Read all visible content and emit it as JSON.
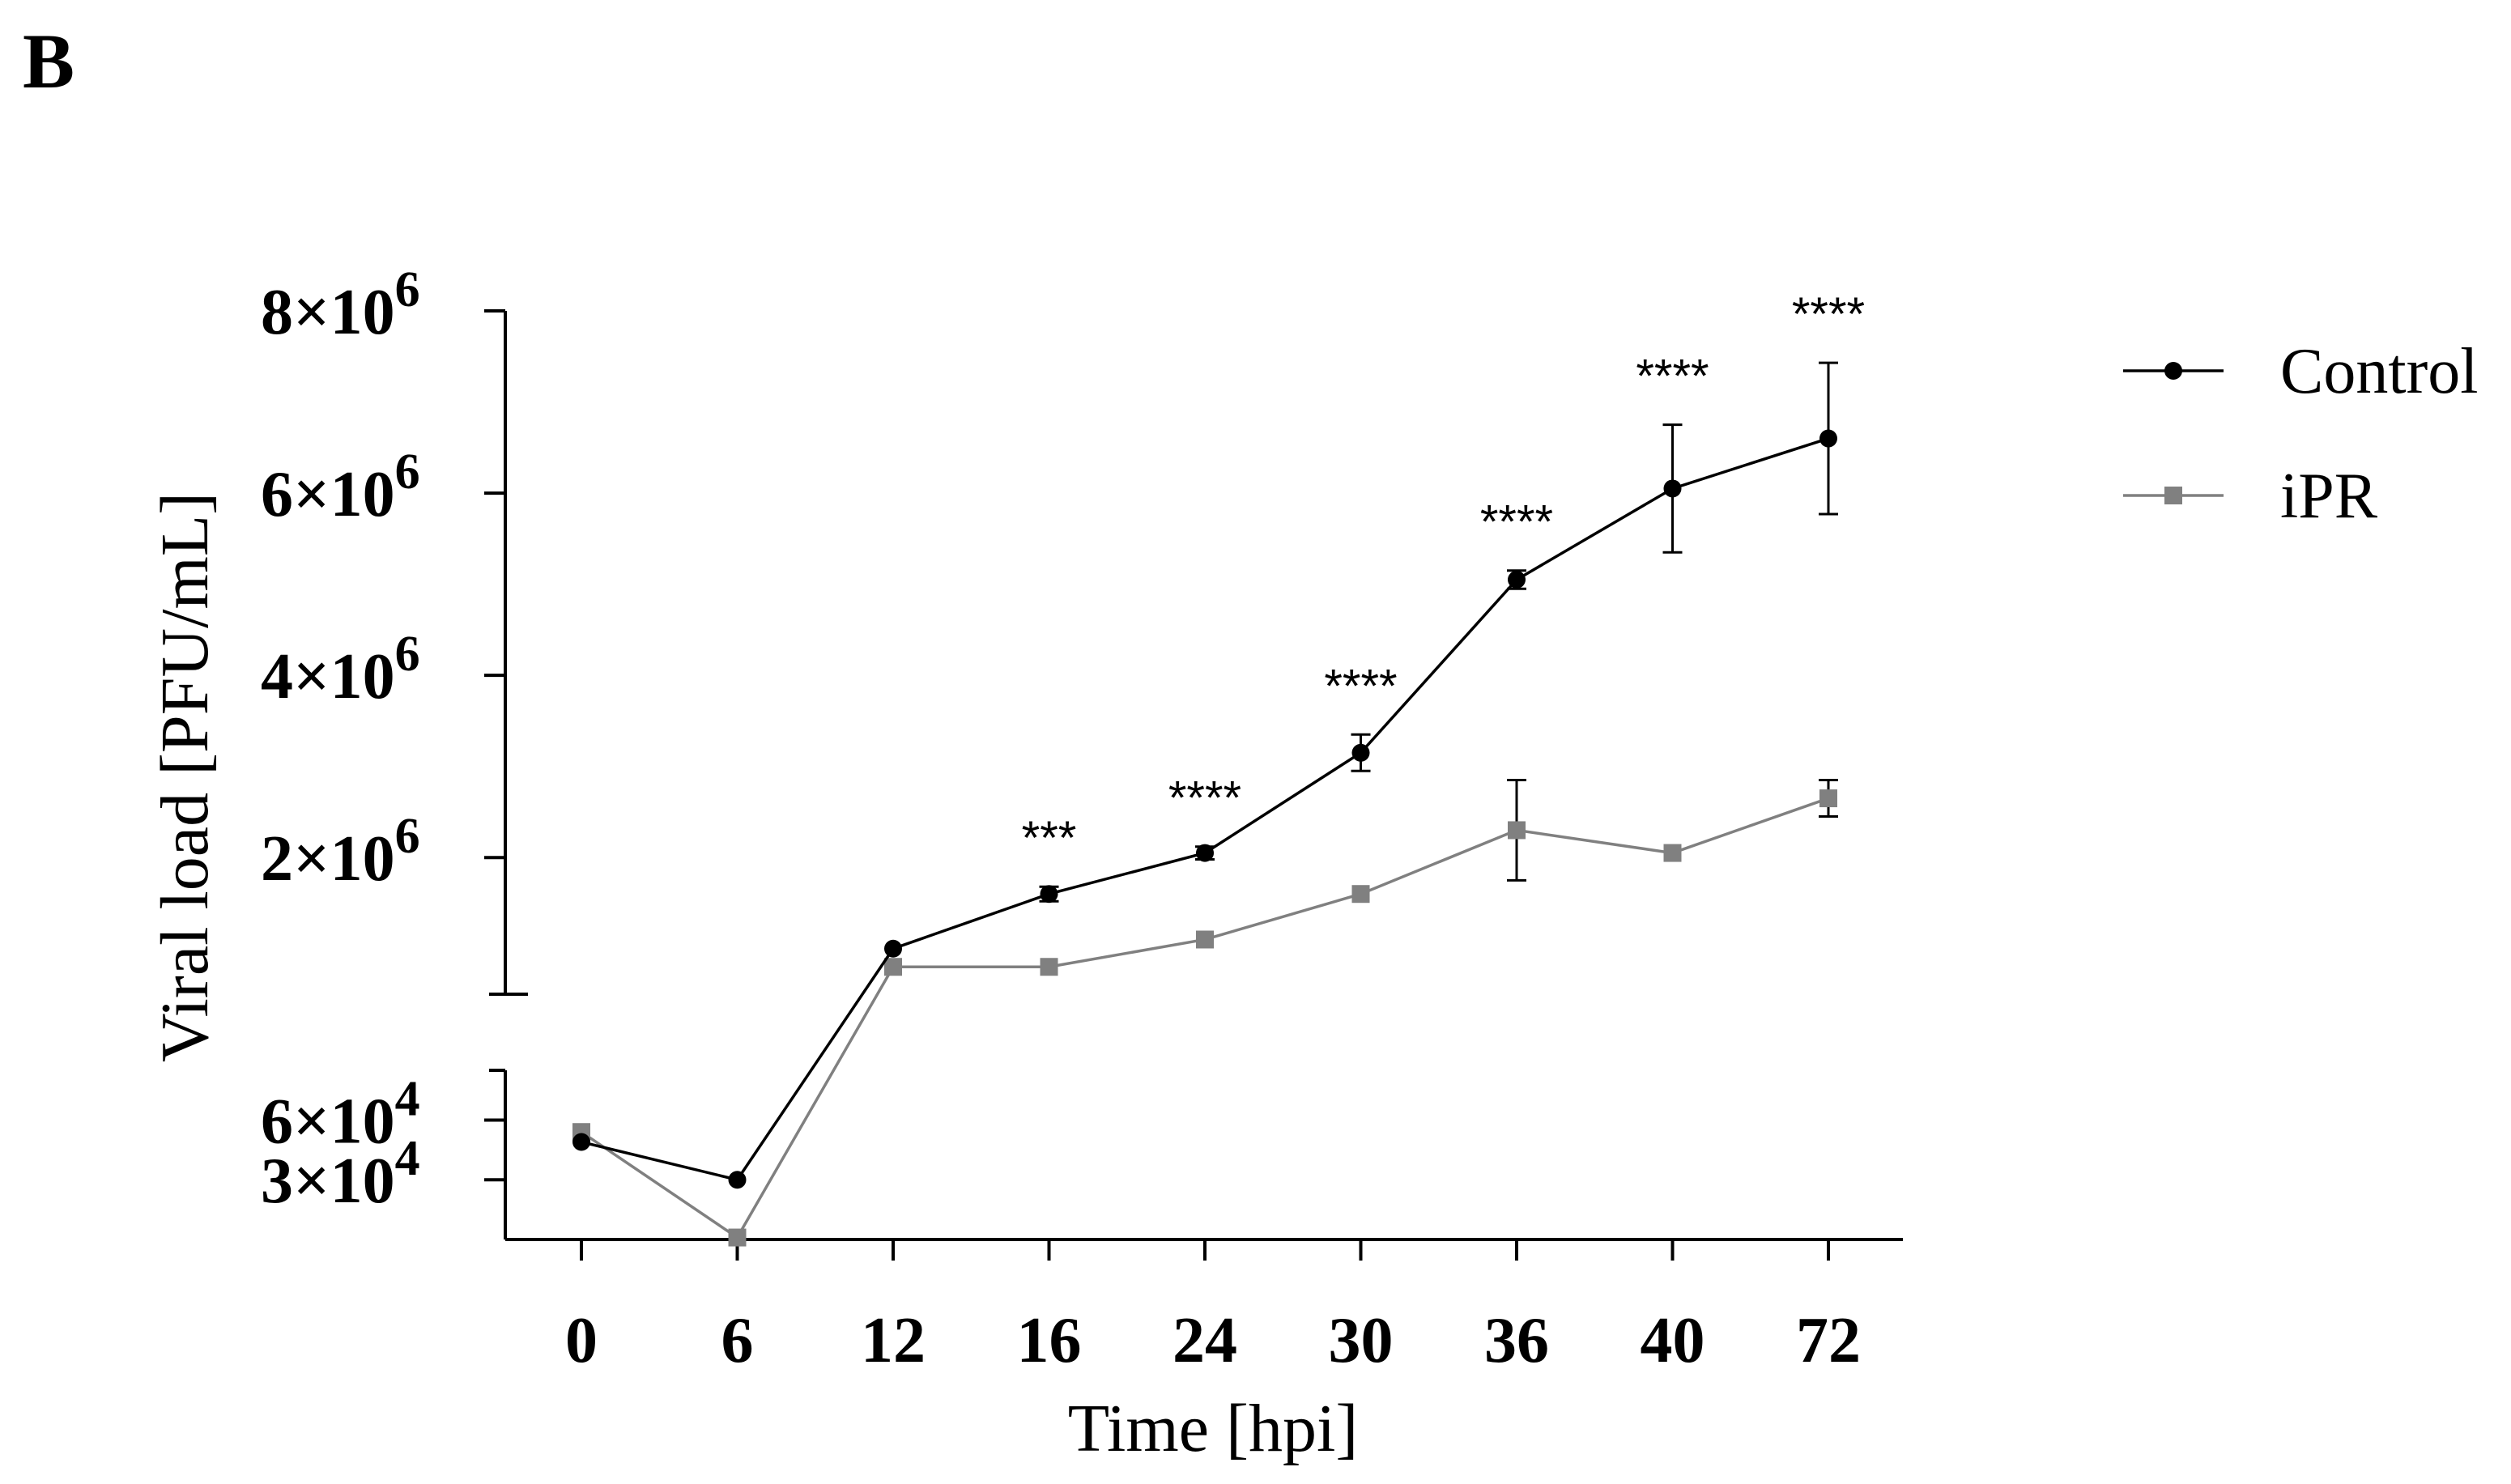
{
  "panel_label": "B",
  "chart_data": {
    "type": "line",
    "title": "",
    "xlabel": "Time [hpi]",
    "ylabel": "Viral load [PFU/mL]",
    "categories": [
      "0",
      "6",
      "12",
      "16",
      "24",
      "30",
      "36",
      "40",
      "72"
    ],
    "y_axis_broken": true,
    "y_segments": {
      "lower": {
        "range": [
          0,
          85000
        ],
        "ticks": [
          {
            "value": 30000,
            "mantissa": "3×10",
            "exp": "4"
          },
          {
            "value": 60000,
            "mantissa": "6×10",
            "exp": "4"
          }
        ]
      },
      "upper": {
        "range": [
          500000,
          8000000
        ],
        "ticks": [
          {
            "value": 2000000,
            "mantissa": "2×10",
            "exp": "6"
          },
          {
            "value": 4000000,
            "mantissa": "4×10",
            "exp": "6"
          },
          {
            "value": 6000000,
            "mantissa": "6×10",
            "exp": "6"
          },
          {
            "value": 8000000,
            "mantissa": "8×10",
            "exp": "6"
          }
        ]
      }
    },
    "series": [
      {
        "name": "Control",
        "marker": "circle",
        "color": "#000000",
        "values": [
          49000,
          30000,
          1000000,
          1600000,
          2050000,
          3150000,
          5050000,
          6050000,
          6600000
        ],
        "errors": [
          null,
          null,
          null,
          80000,
          70000,
          200000,
          100000,
          700000,
          830000
        ]
      },
      {
        "name": "iPR",
        "marker": "square",
        "color": "#808080",
        "values": [
          54000,
          1000,
          800000,
          800000,
          1100000,
          1600000,
          2300000,
          2050000,
          2650000
        ],
        "errors": [
          null,
          null,
          null,
          null,
          null,
          null,
          550000,
          null,
          200000
        ]
      }
    ],
    "annotations": [
      "",
      "",
      "",
      "***",
      "****",
      "****",
      "****",
      "****",
      "****"
    ],
    "legend_position": "top-right"
  }
}
